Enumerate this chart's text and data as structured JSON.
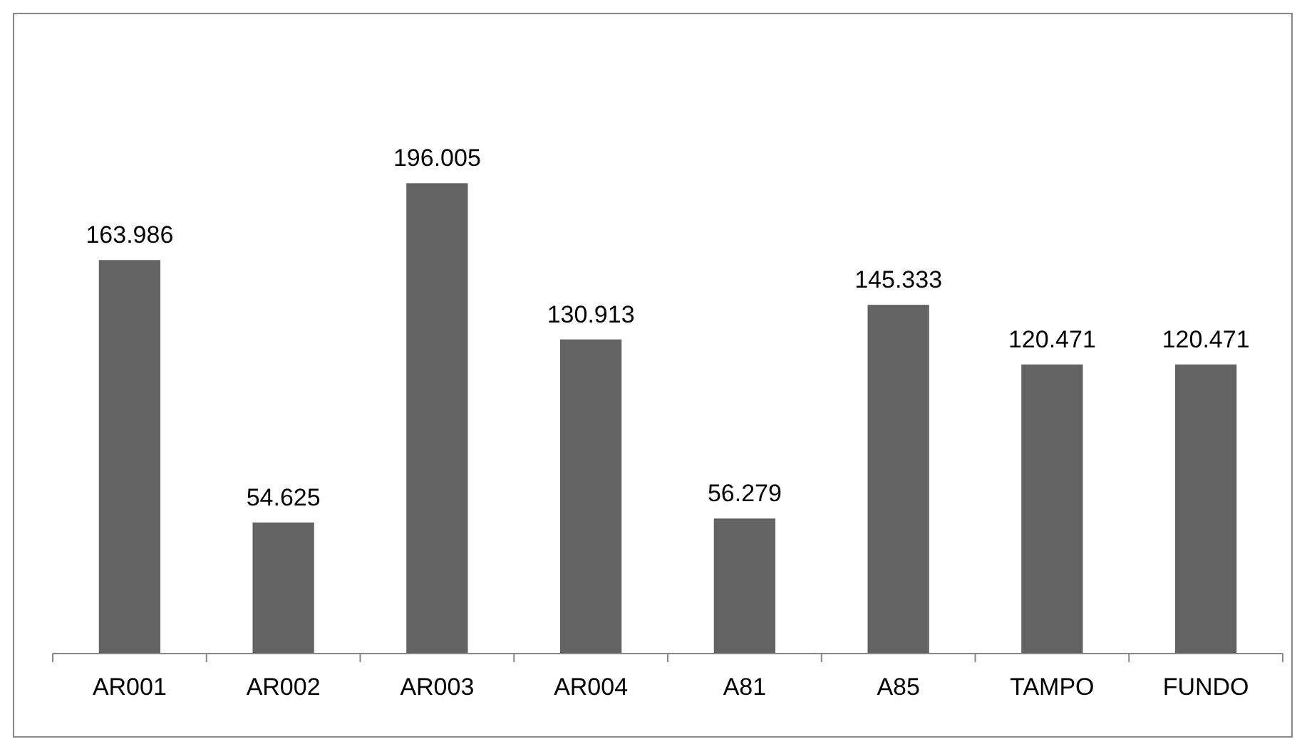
{
  "chart_data": {
    "type": "bar",
    "categories": [
      "AR001",
      "AR002",
      "AR003",
      "AR004",
      "A81",
      "A85",
      "TAMPO",
      "FUNDO"
    ],
    "values": [
      163.986,
      54.625,
      196.005,
      130.913,
      56.279,
      145.333,
      120.471,
      120.471
    ],
    "color": "#636363",
    "data_labels": true
  }
}
